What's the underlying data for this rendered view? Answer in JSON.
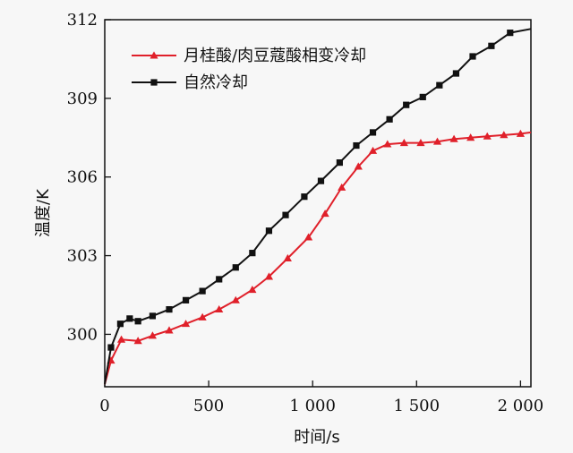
{
  "chart_data": {
    "type": "line",
    "xlabel": "时间/s",
    "ylabel": "温度/K",
    "xlim": [
      0,
      2050
    ],
    "ylim": [
      298,
      312
    ],
    "xticks": [
      0,
      500,
      1000,
      1500,
      2000
    ],
    "xtick_labels": [
      "0",
      "500",
      "1 000",
      "1 500",
      "2 000"
    ],
    "yticks": [
      300,
      303,
      306,
      309,
      312
    ],
    "ytick_labels": [
      "300",
      "303",
      "306",
      "309",
      "312"
    ],
    "legend_position": "top-left",
    "grid": false,
    "series": [
      {
        "name": "月桂酸/肉豆蔻酸相变冷却",
        "color": "#e0202a",
        "marker": "triangle",
        "x": [
          0,
          30,
          80,
          160,
          230,
          310,
          390,
          470,
          550,
          630,
          710,
          790,
          880,
          980,
          1060,
          1140,
          1220,
          1290,
          1360,
          1440,
          1520,
          1600,
          1680,
          1760,
          1840,
          1920,
          2000,
          2050
        ],
        "y": [
          298.1,
          299.0,
          299.8,
          299.75,
          299.95,
          300.15,
          300.4,
          300.65,
          300.95,
          301.3,
          301.7,
          302.2,
          302.9,
          303.7,
          304.6,
          305.6,
          306.4,
          307.0,
          307.25,
          307.3,
          307.3,
          307.35,
          307.45,
          307.5,
          307.55,
          307.6,
          307.65,
          307.7
        ]
      },
      {
        "name": "自然冷却",
        "color": "#111111",
        "marker": "square",
        "x": [
          0,
          30,
          75,
          120,
          160,
          230,
          310,
          390,
          470,
          550,
          630,
          710,
          790,
          870,
          960,
          1040,
          1130,
          1210,
          1290,
          1370,
          1450,
          1530,
          1610,
          1690,
          1770,
          1860,
          1950,
          2050
        ],
        "y": [
          298.1,
          299.5,
          300.4,
          300.6,
          300.5,
          300.7,
          300.95,
          301.3,
          301.65,
          302.1,
          302.55,
          303.1,
          303.95,
          304.55,
          305.25,
          305.85,
          306.55,
          307.2,
          307.7,
          308.2,
          308.75,
          309.05,
          309.5,
          309.95,
          310.6,
          311.0,
          311.5,
          311.65
        ]
      }
    ]
  }
}
